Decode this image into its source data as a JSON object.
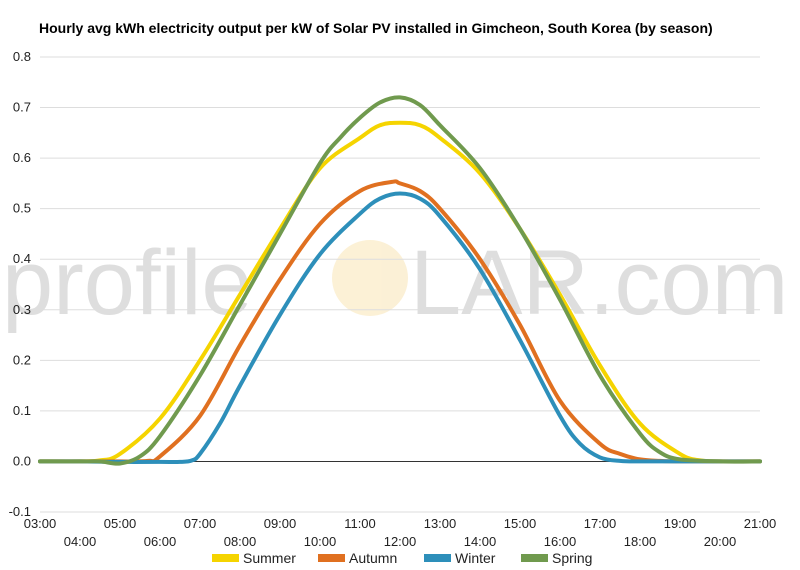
{
  "chart_data": {
    "type": "line",
    "title": "Hourly avg kWh electricity output per kW of Solar PV installed in Gimcheon, South Korea (by season)",
    "xlabel": "",
    "ylabel": "",
    "categories": [
      "03:00",
      "04:00",
      "05:00",
      "06:00",
      "07:00",
      "08:00",
      "09:00",
      "10:00",
      "11:00",
      "12:00",
      "13:00",
      "14:00",
      "15:00",
      "16:00",
      "17:00",
      "18:00",
      "19:00",
      "20:00",
      "21:00"
    ],
    "ylim": [
      -0.1,
      0.8
    ],
    "yticks": [
      -0.1,
      0.0,
      0.1,
      0.2,
      0.3,
      0.4,
      0.5,
      0.6,
      0.7,
      0.8
    ],
    "ytick_labels": [
      "-0.1",
      "0.0",
      "0.1",
      "0.2",
      "0.3",
      "0.4",
      "0.5",
      "0.6",
      "0.7",
      "0.8"
    ],
    "grid": true,
    "legend": "bottom",
    "series": [
      {
        "name": "Summer",
        "color": "#f5d400",
        "x": [
          3,
          4,
          4.5,
          5,
          6,
          7,
          8,
          9,
          10,
          11,
          11.5,
          12,
          12.5,
          13,
          14,
          15,
          16,
          17,
          18,
          19,
          19.5,
          20,
          21
        ],
        "values": [
          0,
          0,
          0.002,
          0.015,
          0.085,
          0.2,
          0.33,
          0.46,
          0.58,
          0.64,
          0.665,
          0.67,
          0.665,
          0.64,
          0.57,
          0.46,
          0.33,
          0.19,
          0.075,
          0.015,
          0.002,
          0,
          0
        ]
      },
      {
        "name": "Autumn",
        "color": "#e07020",
        "x": [
          3,
          4,
          5,
          5.7,
          6,
          7,
          8,
          9,
          10,
          11,
          11.8,
          12,
          12.5,
          13,
          14,
          15,
          16,
          17,
          17.5,
          18,
          18.5,
          19,
          20,
          21
        ],
        "values": [
          0,
          0,
          0,
          0.001,
          0.01,
          0.09,
          0.23,
          0.36,
          0.47,
          0.535,
          0.553,
          0.55,
          0.535,
          0.5,
          0.4,
          0.27,
          0.12,
          0.035,
          0.015,
          0.004,
          0.001,
          0,
          0,
          0
        ]
      },
      {
        "name": "Winter",
        "color": "#2d8fba",
        "x": [
          3,
          4,
          5,
          6,
          6.5,
          6.8,
          7,
          7.5,
          8,
          9,
          10,
          11,
          11.5,
          12,
          12.5,
          13,
          14,
          15,
          16,
          16.5,
          17,
          17.5,
          18,
          19,
          20,
          21
        ],
        "values": [
          0,
          0,
          -0.001,
          -0.001,
          -0.001,
          0.002,
          0.015,
          0.075,
          0.15,
          0.29,
          0.41,
          0.49,
          0.52,
          0.53,
          0.52,
          0.485,
          0.38,
          0.24,
          0.09,
          0.035,
          0.008,
          0.001,
          0,
          0,
          0,
          0
        ]
      },
      {
        "name": "Spring",
        "color": "#709a4e",
        "x": [
          3,
          4,
          4.5,
          5,
          5.5,
          6,
          7,
          8,
          9,
          10,
          10.5,
          11,
          11.5,
          12,
          12.5,
          13,
          14,
          15,
          16,
          17,
          18,
          18.5,
          19,
          20,
          21
        ],
        "values": [
          0,
          0,
          0,
          -0.004,
          0.01,
          0.05,
          0.17,
          0.31,
          0.45,
          0.59,
          0.64,
          0.68,
          0.71,
          0.72,
          0.705,
          0.665,
          0.58,
          0.46,
          0.32,
          0.17,
          0.055,
          0.018,
          0.004,
          0,
          0
        ]
      }
    ]
  },
  "watermark": {
    "left": "profile",
    "right": "LAR.com"
  }
}
